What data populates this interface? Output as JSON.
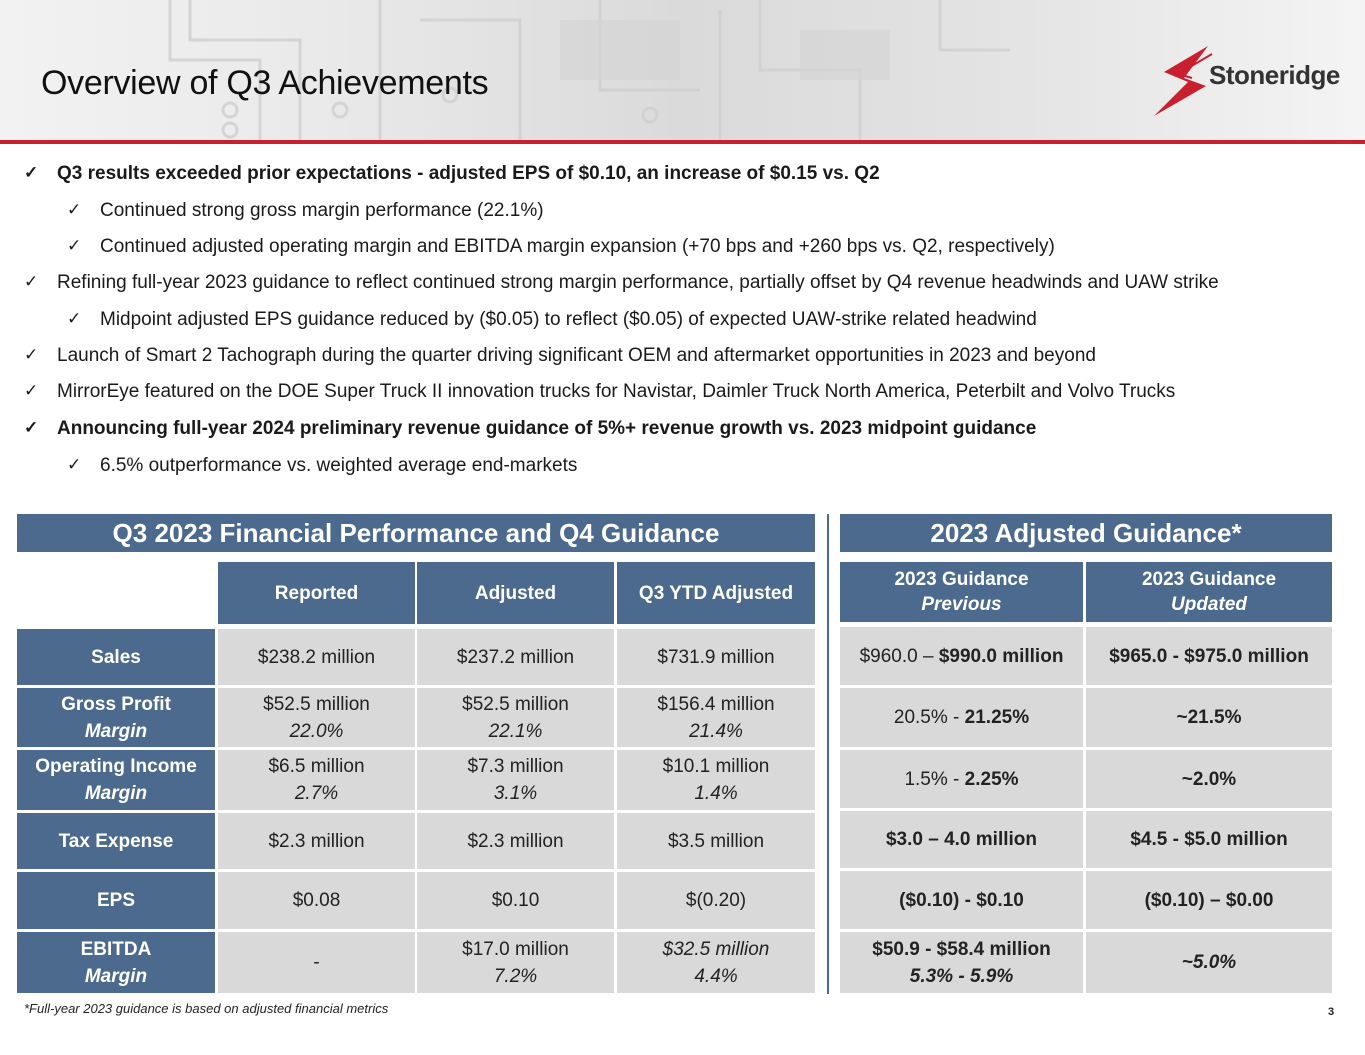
{
  "title": "Overview of Q3 Achievements",
  "brand": {
    "name": "Stoneridge",
    "accent": "#c9202f",
    "table_blue": "#4b6a8d",
    "cell_gray": "#d9d9d9"
  },
  "bullets": [
    {
      "level": 1,
      "bold": true,
      "text": "Q3 results exceeded prior expectations - adjusted EPS of $0.10, an increase of $0.15 vs. Q2"
    },
    {
      "level": 2,
      "bold": false,
      "text": "Continued strong gross margin performance (22.1%)"
    },
    {
      "level": 2,
      "bold": false,
      "text": "Continued adjusted operating margin and EBITDA margin expansion (+70 bps and +260 bps vs. Q2, respectively)"
    },
    {
      "level": 1,
      "bold": false,
      "text": "Refining full-year 2023 guidance to reflect continued strong margin performance, partially offset by Q4 revenue headwinds and UAW strike"
    },
    {
      "level": 2,
      "bold": false,
      "text": "Midpoint adjusted EPS guidance reduced by ($0.05) to reflect ($0.05) of expected UAW-strike related headwind"
    },
    {
      "level": 1,
      "bold": false,
      "text": "Launch of Smart 2 Tachograph during the quarter driving significant OEM and aftermarket opportunities in 2023 and beyond"
    },
    {
      "level": 1,
      "bold": false,
      "text": "MirrorEye featured on the DOE Super Truck II innovation trucks for Navistar, Daimler Truck North America, Peterbilt and Volvo Trucks"
    },
    {
      "level": 1,
      "bold": true,
      "text": "Announcing full-year 2024 preliminary revenue guidance of 5%+ revenue growth vs. 2023 midpoint guidance"
    },
    {
      "level": 2,
      "bold": false,
      "text": "6.5% outperformance vs. weighted average end-markets"
    }
  ],
  "check_mark": "✓",
  "left_table": {
    "title": "Q3 2023 Financial Performance and Q4 Guidance",
    "columns": [
      "Reported",
      "Adjusted",
      "Q3 YTD Adjusted"
    ],
    "rows": [
      {
        "label": "Sales",
        "sublabel": "",
        "cells": [
          [
            "$238.2 million",
            ""
          ],
          [
            "$237.2 million",
            ""
          ],
          [
            "$731.9 million",
            ""
          ]
        ]
      },
      {
        "label": "Gross Profit",
        "sublabel": "Margin",
        "cells": [
          [
            "$52.5 million",
            "22.0%"
          ],
          [
            "$52.5 million",
            "22.1%"
          ],
          [
            "$156.4 million",
            "21.4%"
          ]
        ]
      },
      {
        "label": "Operating Income",
        "sublabel": "Margin",
        "cells": [
          [
            "$6.5 million",
            "2.7%"
          ],
          [
            "$7.3 million",
            "3.1%"
          ],
          [
            "$10.1 million",
            "1.4%"
          ]
        ]
      },
      {
        "label": "Tax Expense",
        "sublabel": "",
        "cells": [
          [
            "$2.3 million",
            ""
          ],
          [
            "$2.3 million",
            ""
          ],
          [
            "$3.5 million",
            ""
          ]
        ]
      },
      {
        "label": "EPS",
        "sublabel": "",
        "cells": [
          [
            "$0.08",
            ""
          ],
          [
            "$0.10",
            ""
          ],
          [
            "$(0.20)",
            ""
          ]
        ]
      },
      {
        "label": "EBITDA",
        "sublabel": "Margin",
        "cells": [
          [
            "-",
            ""
          ],
          [
            "$17.0 million",
            "7.2%"
          ],
          [
            "$32.5 million",
            "4.4%"
          ]
        ]
      }
    ]
  },
  "right_table": {
    "title": "2023 Adjusted Guidance*",
    "columns": [
      {
        "label": "2023 Guidance",
        "sublabel": "Previous"
      },
      {
        "label": "2023 Guidance",
        "sublabel": "Updated"
      }
    ],
    "rows": [
      {
        "previous": {
          "plain": "$960.0 – ",
          "bold": "$990.0 million",
          "sub": ""
        },
        "updated": {
          "plain": "",
          "bold": "$965.0 - $975.0 million",
          "sub": ""
        }
      },
      {
        "previous": {
          "plain": "20.5% - ",
          "bold": "21.25%",
          "sub": ""
        },
        "updated": {
          "plain": "",
          "bold": "~21.5%",
          "sub": ""
        }
      },
      {
        "previous": {
          "plain": "1.5% - ",
          "bold": "2.25%",
          "sub": ""
        },
        "updated": {
          "plain": "",
          "bold": "~2.0%",
          "sub": ""
        }
      },
      {
        "previous": {
          "plain": "",
          "bold": "$3.0 – 4.0 million",
          "sub": ""
        },
        "updated": {
          "plain": "",
          "bold": "$4.5 - $5.0 million",
          "sub": ""
        }
      },
      {
        "previous": {
          "plain": "",
          "bold": "($0.10) - $0.10",
          "sub": ""
        },
        "updated": {
          "plain": "",
          "bold": "($0.10) – $0.00",
          "sub": ""
        }
      },
      {
        "previous": {
          "plain": "",
          "bold": "$50.9 - $58.4 million",
          "sub": "5.3% - 5.9%"
        },
        "updated": {
          "plain": "",
          "bold": "~5.0%",
          "sub": ""
        }
      }
    ]
  },
  "footnote": "*Full-year 2023 guidance is based on adjusted financial metrics",
  "page_number": "3"
}
